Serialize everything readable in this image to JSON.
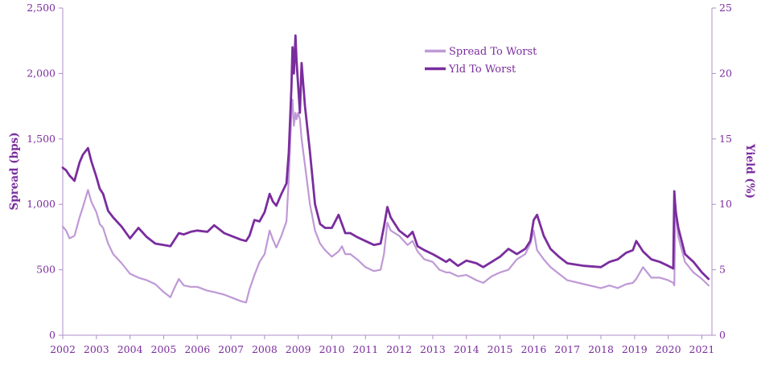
{
  "chart_data": {
    "type": "line",
    "title": "",
    "xlabel": "",
    "ylabel": "Spread (bps)",
    "y2label": "Yield (%)",
    "xlim": [
      2002,
      2021.3
    ],
    "ylim": [
      0,
      2500
    ],
    "y2lim": [
      0,
      25
    ],
    "x_ticks": [
      "2002",
      "2003",
      "2004",
      "2005",
      "2006",
      "2007",
      "2008",
      "2009",
      "2010",
      "2011",
      "2012",
      "2013",
      "2014",
      "2015",
      "2016",
      "2017",
      "2018",
      "2019",
      "2020",
      "2021"
    ],
    "y_ticks": [
      "0",
      "500",
      "1,000",
      "1,500",
      "2,000",
      "2,500"
    ],
    "y2_ticks": [
      "0",
      "5",
      "10",
      "15",
      "20",
      "25"
    ],
    "grid": false,
    "legend_position": "top-center",
    "colors": {
      "spread": "#bf99d6",
      "yield": "#7a2d9e",
      "axis": "#b08cc8"
    },
    "series": [
      {
        "name": "Spread To Worst",
        "axis": "left",
        "x": [
          2002.0,
          2002.1,
          2002.2,
          2002.35,
          2002.5,
          2002.6,
          2002.75,
          2002.85,
          2003.0,
          2003.1,
          2003.2,
          2003.35,
          2003.5,
          2003.75,
          2004.0,
          2004.25,
          2004.5,
          2004.75,
          2005.0,
          2005.2,
          2005.3,
          2005.45,
          2005.6,
          2005.8,
          2006.0,
          2006.3,
          2006.5,
          2006.8,
          2007.0,
          2007.3,
          2007.45,
          2007.55,
          2007.7,
          2007.85,
          2008.0,
          2008.15,
          2008.25,
          2008.35,
          2008.5,
          2008.65,
          2008.72,
          2008.8,
          2008.83,
          2008.87,
          2008.92,
          2008.95,
          2009.0,
          2009.05,
          2009.1,
          2009.2,
          2009.35,
          2009.5,
          2009.65,
          2009.8,
          2010.0,
          2010.2,
          2010.3,
          2010.4,
          2010.55,
          2010.75,
          2011.0,
          2011.25,
          2011.45,
          2011.55,
          2011.65,
          2011.75,
          2012.0,
          2012.25,
          2012.4,
          2012.55,
          2012.75,
          2013.0,
          2013.2,
          2013.4,
          2013.5,
          2013.75,
          2014.0,
          2014.3,
          2014.5,
          2014.75,
          2015.0,
          2015.25,
          2015.5,
          2015.75,
          2015.9,
          2016.0,
          2016.1,
          2016.3,
          2016.5,
          2016.75,
          2017.0,
          2017.5,
          2018.0,
          2018.25,
          2018.5,
          2018.75,
          2018.95,
          2019.05,
          2019.25,
          2019.5,
          2019.75,
          2020.0,
          2020.15,
          2020.18,
          2020.22,
          2020.3,
          2020.5,
          2020.75,
          2021.0,
          2021.2
        ],
        "values": [
          830,
          800,
          740,
          760,
          900,
          980,
          1110,
          1020,
          940,
          850,
          820,
          700,
          620,
          550,
          470,
          440,
          420,
          390,
          330,
          290,
          350,
          430,
          380,
          370,
          370,
          340,
          330,
          310,
          290,
          260,
          250,
          350,
          460,
          560,
          620,
          800,
          730,
          670,
          760,
          870,
          1200,
          1700,
          1800,
          1600,
          1700,
          1650,
          1700,
          1650,
          1500,
          1300,
          1000,
          800,
          700,
          650,
          600,
          640,
          680,
          620,
          620,
          580,
          520,
          490,
          500,
          620,
          860,
          800,
          760,
          690,
          720,
          640,
          580,
          560,
          500,
          480,
          480,
          450,
          460,
          420,
          400,
          450,
          480,
          500,
          580,
          620,
          700,
          800,
          650,
          580,
          520,
          470,
          420,
          390,
          360,
          380,
          360,
          390,
          400,
          430,
          520,
          440,
          440,
          420,
          400,
          380,
          1000,
          750,
          560,
          480,
          430,
          380
        ]
      },
      {
        "name": "Yld To Worst",
        "axis": "right",
        "x": [
          2002.0,
          2002.1,
          2002.2,
          2002.35,
          2002.5,
          2002.6,
          2002.75,
          2002.85,
          2003.0,
          2003.1,
          2003.2,
          2003.35,
          2003.5,
          2003.75,
          2004.0,
          2004.25,
          2004.5,
          2004.75,
          2005.0,
          2005.2,
          2005.3,
          2005.45,
          2005.6,
          2005.8,
          2006.0,
          2006.3,
          2006.5,
          2006.8,
          2007.0,
          2007.3,
          2007.45,
          2007.55,
          2007.7,
          2007.85,
          2008.0,
          2008.15,
          2008.25,
          2008.35,
          2008.5,
          2008.65,
          2008.72,
          2008.8,
          2008.83,
          2008.87,
          2008.92,
          2008.95,
          2009.0,
          2009.05,
          2009.1,
          2009.2,
          2009.35,
          2009.5,
          2009.65,
          2009.8,
          2010.0,
          2010.2,
          2010.3,
          2010.4,
          2010.55,
          2010.75,
          2011.0,
          2011.25,
          2011.45,
          2011.55,
          2011.65,
          2011.75,
          2012.0,
          2012.25,
          2012.4,
          2012.55,
          2012.75,
          2013.0,
          2013.2,
          2013.4,
          2013.5,
          2013.75,
          2014.0,
          2014.3,
          2014.5,
          2014.75,
          2015.0,
          2015.25,
          2015.5,
          2015.75,
          2015.9,
          2016.0,
          2016.1,
          2016.3,
          2016.5,
          2016.75,
          2017.0,
          2017.5,
          2018.0,
          2018.25,
          2018.5,
          2018.75,
          2018.95,
          2019.05,
          2019.25,
          2019.5,
          2019.75,
          2020.0,
          2020.15,
          2020.18,
          2020.22,
          2020.3,
          2020.5,
          2020.75,
          2021.0,
          2021.2
        ],
        "values": [
          12.8,
          12.6,
          12.2,
          11.8,
          13.2,
          13.8,
          14.3,
          13.3,
          12.1,
          11.2,
          10.8,
          9.5,
          9.0,
          8.3,
          7.4,
          8.2,
          7.5,
          7.0,
          6.9,
          6.8,
          7.2,
          7.8,
          7.7,
          7.9,
          8.0,
          7.9,
          8.4,
          7.8,
          7.6,
          7.3,
          7.2,
          7.6,
          8.8,
          8.7,
          9.4,
          10.8,
          10.2,
          9.9,
          10.8,
          11.6,
          14.0,
          19.0,
          22.0,
          20.0,
          22.9,
          21.0,
          19.0,
          17.0,
          20.8,
          17.5,
          14.0,
          10.0,
          8.5,
          8.2,
          8.2,
          9.2,
          8.5,
          7.8,
          7.8,
          7.5,
          7.2,
          6.9,
          7.0,
          8.3,
          9.8,
          9.0,
          8.0,
          7.5,
          7.9,
          6.8,
          6.5,
          6.2,
          5.9,
          5.6,
          5.8,
          5.3,
          5.7,
          5.5,
          5.2,
          5.6,
          6.0,
          6.6,
          6.2,
          6.6,
          7.2,
          8.8,
          9.2,
          7.6,
          6.6,
          6.0,
          5.5,
          5.3,
          5.2,
          5.6,
          5.8,
          6.3,
          6.5,
          7.2,
          6.4,
          5.8,
          5.6,
          5.3,
          5.1,
          11.0,
          9.5,
          8.2,
          6.2,
          5.6,
          4.8,
          4.3
        ]
      }
    ]
  }
}
